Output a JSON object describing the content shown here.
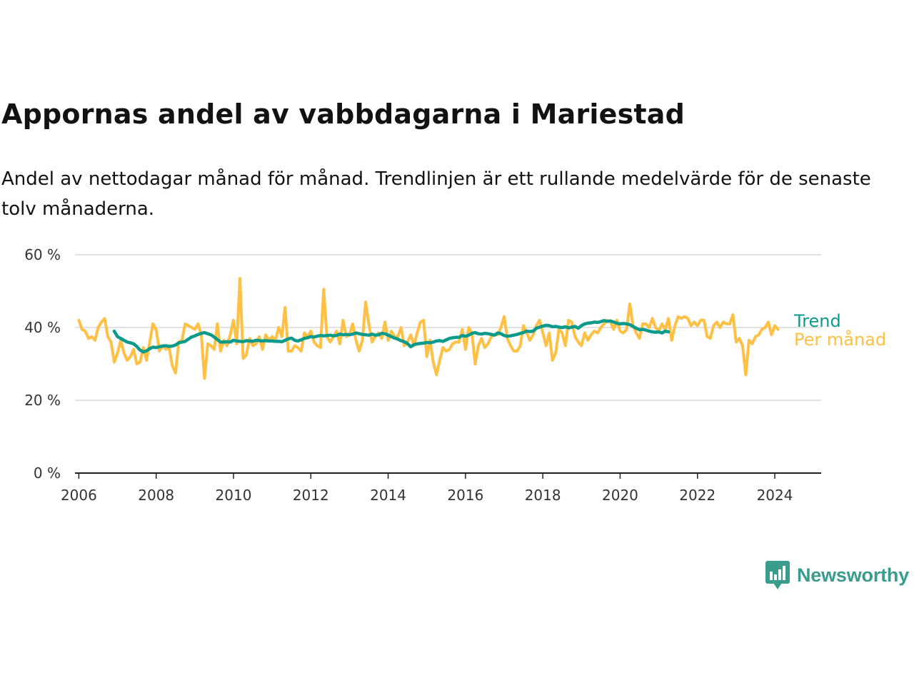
{
  "colors": {
    "trend": "#0c9a8a",
    "monthly": "#ffc043",
    "grid": "#d9d9d9",
    "axis": "#222222",
    "brand": "#3a9c8d"
  },
  "brand": {
    "name": "Newsworthy",
    "icon": "newsworthy-logo-icon"
  },
  "chart_data": {
    "type": "line",
    "title": "Appornas andel av vabbdagarna i Mariestad",
    "subtitle": "Andel av nettodagar månad för månad. Trendlinjen är ett rullande medelvärde för de senaste tolv månaderna.",
    "xlabel": "",
    "ylabel": "",
    "xlim": [
      2005.9,
      2025.2
    ],
    "ylim": [
      0,
      60
    ],
    "grid": true,
    "x_ticks": [
      2006,
      2008,
      2010,
      2012,
      2014,
      2016,
      2018,
      2020,
      2022,
      2024
    ],
    "y_ticks": [
      {
        "value": 0,
        "label": "0 %"
      },
      {
        "value": 20,
        "label": "20 %"
      },
      {
        "value": 40,
        "label": "40 %"
      },
      {
        "value": 60,
        "label": "60 %"
      }
    ],
    "legend_placement": "right-end",
    "series": [
      {
        "name": "Trend",
        "color": "#0c9a8a",
        "x_start": 2006.9167,
        "step_months": 1,
        "values": [
          39,
          37.5,
          37,
          36.5,
          36,
          35.8,
          35.5,
          34.8,
          33.8,
          33.3,
          33.6,
          34.2,
          34.6,
          34.5,
          34.7,
          34.9,
          35,
          34.8,
          34.9,
          35.2,
          35.8,
          36,
          36.2,
          36.8,
          37.4,
          37.7,
          38.1,
          38.4,
          38.6,
          38.3,
          38,
          37.4,
          36.7,
          36,
          36,
          36.1,
          36,
          36.5,
          36.3,
          36.2,
          36.1,
          36.4,
          36.3,
          36.2,
          36.5,
          36.4,
          36.3,
          36.4,
          36.3,
          36.3,
          36.2,
          36.2,
          36.1,
          36.5,
          36.9,
          37.1,
          36.5,
          36.3,
          36.6,
          37,
          37.2,
          37.5,
          37.4,
          37.6,
          37.8,
          37.7,
          37.8,
          37.9,
          37.7,
          37.8,
          38.2,
          38,
          38.1,
          38,
          38.2,
          38.5,
          38.3,
          38.1,
          38,
          37.9,
          38.2,
          37.9,
          38,
          38.4,
          38.3,
          37.9,
          37.5,
          37.1,
          36.8,
          36.4,
          36.1,
          35.6,
          34.7,
          35.3,
          35.5,
          35.6,
          35.7,
          35.9,
          35.8,
          36,
          36.3,
          36.4,
          36.2,
          36.6,
          37,
          37.2,
          37.3,
          37.3,
          37.8,
          37.6,
          37.9,
          38.4,
          38.6,
          38.3,
          38.2,
          38.4,
          38.3,
          38.1,
          37.9,
          38.5,
          38.3,
          37.8,
          37.6,
          37.7,
          37.9,
          38.1,
          38.4,
          38.6,
          39,
          38.9,
          39,
          39.8,
          40.1,
          40.4,
          40.6,
          40.5,
          40.2,
          40.3,
          40.1,
          40,
          40.2,
          39.9,
          40.1,
          40.3,
          39.8,
          40.5,
          41,
          41.2,
          41.3,
          41.5,
          41.4,
          41.6,
          41.9,
          41.7,
          41.8,
          41.5,
          41.2,
          41,
          41.1,
          41,
          40.8,
          40.3,
          39.8,
          39.4,
          39.5,
          39.3,
          39,
          38.8,
          38.7,
          38.8,
          38.5,
          39,
          38.8
        ]
      },
      {
        "name": "Per månad",
        "color": "#ffc043",
        "x_start": 2006,
        "step_months": 1,
        "values": [
          42,
          39.5,
          39,
          37,
          37.5,
          36.5,
          40,
          41.5,
          42.5,
          37.5,
          36,
          30.5,
          33,
          36.5,
          33,
          31,
          32,
          34,
          30,
          30.5,
          34.5,
          31,
          36,
          41,
          39.5,
          33.5,
          35,
          34,
          34.5,
          29.5,
          27.5,
          36,
          36.5,
          41,
          40.5,
          40,
          39.5,
          41,
          38,
          26,
          35.5,
          35,
          34,
          41,
          33.5,
          36.5,
          35,
          38,
          42,
          35.5,
          53.5,
          31.5,
          32.5,
          37,
          35,
          35.5,
          37.5,
          34,
          38,
          36.5,
          37.5,
          36.5,
          40,
          37.5,
          45.5,
          33.5,
          33.5,
          35,
          34.5,
          33.5,
          38.5,
          37.5,
          39,
          36,
          35,
          34.5,
          50.5,
          37.5,
          36,
          37.5,
          39,
          35.5,
          42,
          37.5,
          38,
          41,
          36.5,
          33.5,
          36.5,
          47,
          41,
          36,
          37.5,
          38.5,
          37,
          41.5,
          36.5,
          39,
          37.5,
          37.5,
          40,
          35,
          36,
          38,
          35,
          38.5,
          41.5,
          42,
          32,
          36.5,
          30.5,
          27,
          31,
          34.5,
          33.5,
          34,
          35.5,
          36,
          36,
          39.5,
          34,
          40,
          38.5,
          30,
          35,
          37,
          34.5,
          35.5,
          37.5,
          38,
          38,
          40,
          43,
          37,
          35,
          33.5,
          33.5,
          35,
          40.5,
          38.5,
          36.5,
          38,
          40.5,
          42,
          38.5,
          35,
          38.5,
          31,
          33,
          39.5,
          38.5,
          35,
          42,
          41.5,
          37.5,
          36,
          35,
          38.5,
          36.5,
          38,
          39,
          38.5,
          40,
          41,
          42,
          41.5,
          39.5,
          42,
          39,
          38.5,
          39.5,
          46.5,
          40.5,
          38.5,
          37,
          41,
          41,
          40,
          42.5,
          40,
          39,
          41,
          39.5,
          42.5,
          36.5,
          40.5,
          43,
          42.5,
          43,
          42.5,
          40.5,
          41.5,
          40.5,
          42,
          42,
          37.5,
          37,
          40.5,
          41.5,
          40,
          41.5,
          41,
          41,
          43.5,
          36,
          37,
          35,
          27,
          36.5,
          35.5,
          37.5,
          38,
          39.5,
          40,
          41.5,
          38,
          40.5,
          39.5
        ]
      }
    ]
  }
}
